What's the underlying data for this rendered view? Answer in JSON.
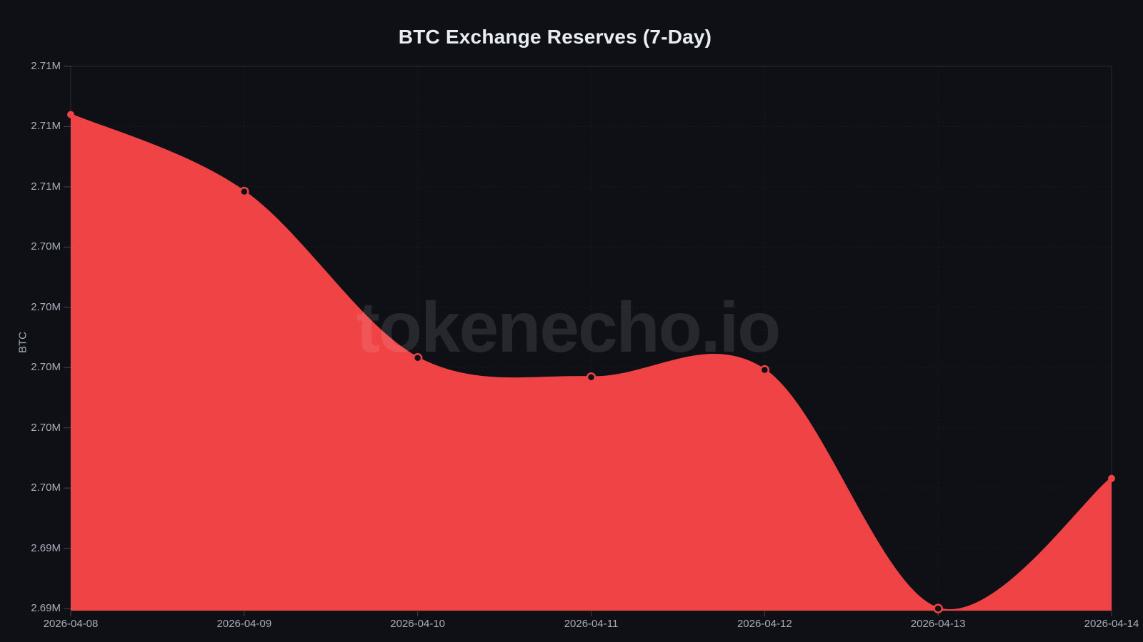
{
  "title": "BTC Exchange Reserves (7-Day)",
  "watermark": "tokenecho.io",
  "y_axis": {
    "title": "BTC",
    "tick_labels": [
      "2.71M",
      "2.71M",
      "2.71M",
      "2.70M",
      "2.70M",
      "2.70M",
      "2.70M",
      "2.70M",
      "2.69M",
      "2.69M"
    ]
  },
  "x_axis": {
    "tick_labels": [
      "2026-04-08",
      "2026-04-09",
      "2026-04-10",
      "2026-04-11",
      "2026-04-12",
      "2026-04-13",
      "2026-04-14"
    ]
  },
  "chart_data": {
    "type": "area",
    "title": "BTC Exchange Reserves (7-Day)",
    "x": [
      "2026-04-08",
      "2026-04-09",
      "2026-04-10",
      "2026-04-11",
      "2026-04-12",
      "2026-04-13",
      "2026-04-14"
    ],
    "series": [
      {
        "name": "BTC Exchange Reserves",
        "unit": "million BTC",
        "values": [
          2.7105,
          2.7073,
          2.7004,
          2.6996,
          2.6999,
          2.69,
          2.6954
        ]
      }
    ],
    "xlabel": "",
    "ylabel": "BTC",
    "ylim": [
      2.69,
      2.7125
    ],
    "y_ticks": [
      2.7125,
      2.71,
      2.7075,
      2.705,
      2.7025,
      2.7,
      2.6975,
      2.695,
      2.6925,
      2.69
    ],
    "grid": true,
    "grid_style": "dotted",
    "legend": false,
    "curve": "smooth",
    "markers": {
      "first": "filled",
      "inner": "open",
      "last": "filled"
    }
  },
  "colors": {
    "background": "#0e1016",
    "area": "#ef4345",
    "line": "#ef4345",
    "marker_inner": "#0e1016",
    "grid": "rgba(255,255,255,0.07)",
    "border": "rgba(255,255,255,0.11)",
    "tick_mark": "rgba(255,255,255,0.22)",
    "axis_label": "#a6aeba",
    "title_text": "#e8edf5"
  }
}
